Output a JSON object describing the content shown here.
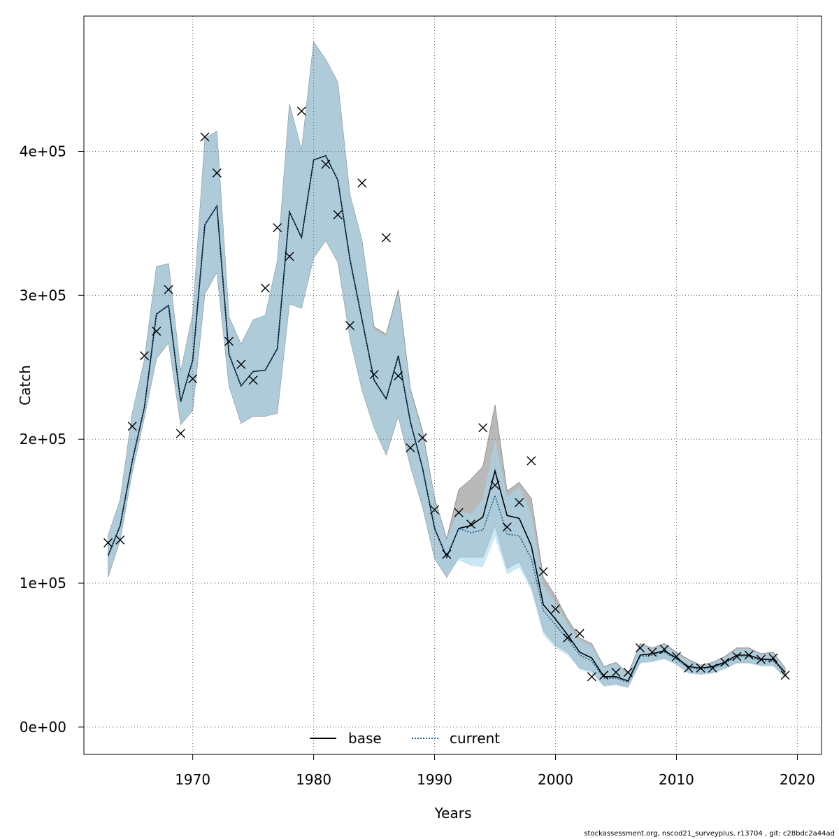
{
  "chart_data": {
    "type": "line",
    "xlabel": "Years",
    "ylabel": "Catch",
    "xlim": [
      1961,
      2022
    ],
    "ylim": [
      -19000,
      494000
    ],
    "x_ticks": [
      1970,
      1980,
      1990,
      2000,
      2010,
      2020
    ],
    "y_ticks": [
      0,
      100000,
      200000,
      300000,
      400000
    ],
    "y_tick_labels": [
      "0e+00",
      "1e+05",
      "2e+05",
      "3e+05",
      "4e+05"
    ],
    "grid": true,
    "legend_position": "bottom",
    "legend": [
      {
        "label": "base",
        "style": "solid"
      },
      {
        "label": "current",
        "style": "dotted"
      }
    ],
    "colors": {
      "base_band": "#b9b9b9",
      "current_band": "#a6d7ee",
      "overlap_band": "#a3c4d6",
      "base_line": "#000000",
      "current_line": "#1f5f8a",
      "grid": "#666666"
    },
    "years": [
      1963,
      1964,
      1965,
      1966,
      1967,
      1968,
      1969,
      1970,
      1971,
      1972,
      1973,
      1974,
      1975,
      1976,
      1977,
      1978,
      1979,
      1980,
      1981,
      1982,
      1983,
      1984,
      1985,
      1986,
      1987,
      1988,
      1989,
      1990,
      1991,
      1992,
      1993,
      1994,
      1995,
      1996,
      1997,
      1998,
      1999,
      2000,
      2001,
      2002,
      2003,
      2004,
      2005,
      2006,
      2007,
      2008,
      2009,
      2010,
      2011,
      2012,
      2013,
      2014,
      2015,
      2016,
      2017,
      2018,
      2019
    ],
    "series": [
      {
        "name": "base",
        "values": [
          119000,
          140000,
          185000,
          222000,
          287000,
          293000,
          226000,
          255000,
          349000,
          362000,
          259000,
          237000,
          247000,
          248000,
          263000,
          358000,
          340000,
          394000,
          397000,
          380000,
          325000,
          283000,
          241000,
          228000,
          258000,
          212000,
          180000,
          138000,
          118000,
          138000,
          140000,
          146000,
          178000,
          147000,
          145000,
          126000,
          85000,
          75000,
          64000,
          52000,
          48000,
          35000,
          35000,
          32000,
          50000,
          51000,
          53000,
          48000,
          42000,
          41000,
          42000,
          45000,
          50000,
          50000,
          47000,
          47000,
          38000
        ],
        "lower": [
          104000,
          130000,
          177000,
          215000,
          256000,
          267000,
          210000,
          220000,
          301000,
          316000,
          237000,
          211000,
          216000,
          216000,
          218000,
          294000,
          291000,
          326000,
          338000,
          323000,
          270000,
          234000,
          208000,
          189000,
          216000,
          181000,
          153000,
          117000,
          104000,
          118000,
          118000,
          118000,
          140000,
          110000,
          115000,
          98000,
          67000,
          57000,
          52000,
          41000,
          39000,
          29000,
          30000,
          28000,
          45000,
          46000,
          48000,
          44000,
          38000,
          37000,
          38000,
          41000,
          45000,
          45000,
          43000,
          43000,
          35000
        ],
        "upper": [
          133000,
          158000,
          218000,
          255000,
          320000,
          322000,
          247000,
          287000,
          409000,
          414000,
          285000,
          266000,
          283000,
          286000,
          324000,
          433000,
          401000,
          476000,
          464000,
          448000,
          370000,
          338000,
          278000,
          273000,
          304000,
          235000,
          206000,
          159000,
          131000,
          165000,
          172000,
          181000,
          224000,
          164000,
          170000,
          159000,
          104000,
          91000,
          75000,
          62000,
          58000,
          42000,
          45000,
          37000,
          58000,
          55000,
          58000,
          52000,
          47000,
          43000,
          45000,
          49000,
          55000,
          55000,
          51000,
          52000,
          41000
        ]
      },
      {
        "name": "current",
        "values": [
          119000,
          140000,
          185000,
          222000,
          287000,
          293000,
          226000,
          255000,
          349000,
          362000,
          259000,
          237000,
          247000,
          248000,
          263000,
          358000,
          340000,
          394000,
          397000,
          380000,
          325000,
          283000,
          241000,
          228000,
          258000,
          212000,
          180000,
          138000,
          118000,
          138000,
          135000,
          137000,
          161000,
          134000,
          133000,
          117000,
          81000,
          71000,
          61000,
          50000,
          46000,
          34000,
          34000,
          31000,
          49000,
          50000,
          52000,
          47000,
          41000,
          40000,
          41000,
          44000,
          49000,
          49000,
          46000,
          46000,
          37000
        ],
        "lower": [
          104000,
          130000,
          177000,
          215000,
          256000,
          267000,
          210000,
          220000,
          301000,
          316000,
          237000,
          211000,
          216000,
          216000,
          218000,
          294000,
          291000,
          326000,
          338000,
          323000,
          270000,
          234000,
          208000,
          189000,
          216000,
          181000,
          153000,
          117000,
          104000,
          116000,
          112000,
          111000,
          132000,
          106000,
          111000,
          95000,
          64000,
          55000,
          50000,
          40000,
          37000,
          28000,
          29000,
          27000,
          44000,
          45000,
          47000,
          43000,
          37000,
          36000,
          37000,
          40000,
          44000,
          44000,
          42000,
          42000,
          34000
        ],
        "upper": [
          133000,
          158000,
          218000,
          255000,
          320000,
          322000,
          247000,
          287000,
          409000,
          414000,
          285000,
          266000,
          283000,
          286000,
          324000,
          433000,
          401000,
          476000,
          464000,
          448000,
          370000,
          338000,
          276000,
          271000,
          302000,
          233000,
          204000,
          158000,
          130000,
          150000,
          148000,
          158000,
          200000,
          160000,
          167000,
          148000,
          98000,
          86000,
          71000,
          60000,
          56000,
          41000,
          44000,
          36000,
          57000,
          54000,
          57000,
          51000,
          46000,
          42000,
          44000,
          48000,
          54000,
          54000,
          50000,
          51000,
          40000
        ]
      },
      {
        "name": "observed",
        "values": [
          128000,
          130000,
          209000,
          258000,
          275000,
          304000,
          204000,
          242000,
          410000,
          385000,
          268000,
          252000,
          241000,
          305000,
          347000,
          327000,
          428000,
          null,
          391000,
          356000,
          279000,
          378000,
          245000,
          340000,
          244000,
          194000,
          201000,
          151000,
          120000,
          149000,
          141000,
          208000,
          168000,
          139000,
          156000,
          185000,
          108000,
          82000,
          62000,
          65000,
          35000,
          36000,
          38000,
          38000,
          55000,
          52000,
          54000,
          49000,
          41000,
          41000,
          41000,
          45000,
          49000,
          50000,
          47000,
          48000,
          36000
        ]
      }
    ]
  },
  "footer": "stockassessment.org, nscod21_surveyplus, r13704 , git: c28bdc2a44ad"
}
